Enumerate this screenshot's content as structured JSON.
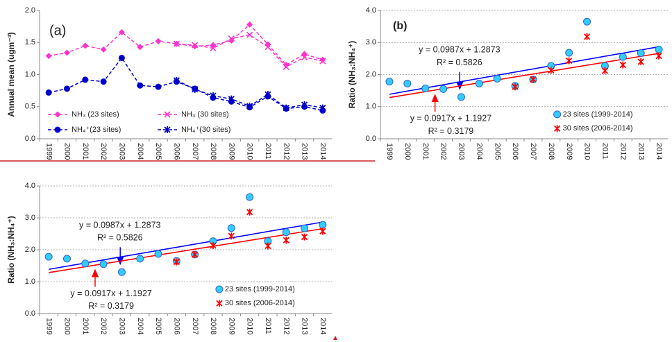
{
  "chart_data": [
    {
      "type": "line",
      "title": "(a)",
      "y_label": "Annual mean (ugm⁻³)",
      "categories": [
        "1999",
        "2000",
        "2001",
        "2002",
        "2003",
        "2004",
        "2005",
        "2006",
        "2007",
        "2008",
        "2009",
        "2010",
        "2011",
        "2012",
        "2013",
        "2014"
      ],
      "ylim": [
        0,
        2
      ],
      "yticks": [
        {
          "value": 0,
          "label": "0.0"
        },
        {
          "value": 0.5,
          "label": "0.5"
        },
        {
          "value": 1,
          "label": "1.0"
        },
        {
          "value": 1.5,
          "label": "1.5"
        },
        {
          "value": 2,
          "label": "2.0"
        }
      ],
      "grid": false,
      "series": [
        {
          "name": "NH₃ (23 sites)",
          "color": "#ff33cc",
          "marker": "diamond",
          "values": [
            1.29,
            1.34,
            1.45,
            1.39,
            1.66,
            1.43,
            1.52,
            1.48,
            1.44,
            1.46,
            1.53,
            1.78,
            1.47,
            1.15,
            1.32,
            1.23
          ]
        },
        {
          "name": "NH₃ (30 sites)",
          "color": "#ff33cc",
          "marker": "x",
          "values": [
            null,
            null,
            null,
            null,
            null,
            null,
            null,
            1.48,
            1.46,
            1.41,
            1.56,
            1.62,
            1.43,
            1.12,
            1.27,
            1.21
          ]
        },
        {
          "name": "NH₄⁺(23 sites)",
          "color": "#0000cc",
          "marker": "circle",
          "values": [
            0.72,
            0.78,
            0.92,
            0.89,
            1.26,
            0.83,
            0.81,
            0.89,
            0.78,
            0.64,
            0.58,
            0.49,
            0.66,
            0.47,
            0.5,
            0.44
          ]
        },
        {
          "name": "NH₄⁺(30 sites)",
          "color": "#0000cc",
          "marker": "asterisk",
          "values": [
            null,
            null,
            null,
            null,
            null,
            null,
            null,
            0.91,
            0.77,
            0.67,
            0.62,
            0.51,
            0.69,
            0.48,
            0.53,
            0.48
          ]
        }
      ]
    },
    {
      "type": "scatter",
      "title": "(b)",
      "y_label": "Ratio (NH₃:NH₄⁺)",
      "categories": [
        "1999",
        "2000",
        "2001",
        "2002",
        "2003",
        "2004",
        "2005",
        "2006",
        "2007",
        "2008",
        "2009",
        "2010",
        "2011",
        "2012",
        "2013",
        "2014"
      ],
      "ylim": [
        0,
        4
      ],
      "yticks": [
        {
          "value": 0,
          "label": "0.0"
        },
        {
          "value": 1,
          "label": "1.0"
        },
        {
          "value": 2,
          "label": "2.0"
        },
        {
          "value": 3,
          "label": "3.0"
        },
        {
          "value": 4,
          "label": "4.0"
        }
      ],
      "grid": true,
      "series": [
        {
          "name": "23 sites (1999-2014)",
          "color": "#3366cc",
          "fill": "#33ccff",
          "marker": "circle",
          "values": [
            1.78,
            1.72,
            1.57,
            1.55,
            1.3,
            1.72,
            1.87,
            1.65,
            1.85,
            2.27,
            2.68,
            3.65,
            2.27,
            2.55,
            2.67,
            2.78
          ]
        },
        {
          "name": "30 sites (2006-2014)",
          "color": "#ff0000",
          "marker": "asterisk",
          "values": [
            null,
            null,
            null,
            null,
            null,
            null,
            null,
            1.62,
            1.85,
            2.13,
            2.43,
            3.18,
            2.12,
            2.3,
            2.4,
            2.58
          ]
        }
      ],
      "trendlines": [
        {
          "color": "#0000ff",
          "slope": 0.0987,
          "intercept": 1.2873,
          "equation": "y = 0.0987x + 1.2873",
          "r2": "R² = 0.5826"
        },
        {
          "color": "#ff0000",
          "slope": 0.0917,
          "intercept": 1.1927,
          "equation": "y = 0.0917x + 1.1927",
          "r2": "R² = 0.3179"
        }
      ]
    },
    {
      "type": "scatter",
      "y_label": "Ratio (NH₃:NH₄⁺)",
      "categories": [
        "1999",
        "2000",
        "2001",
        "2002",
        "2003",
        "2004",
        "2005",
        "2006",
        "2007",
        "2008",
        "2009",
        "2010",
        "2011",
        "2012",
        "2013",
        "2014"
      ],
      "ylim": [
        0,
        4
      ],
      "yticks": [
        {
          "value": 0,
          "label": "0.0"
        },
        {
          "value": 1,
          "label": "1.0"
        },
        {
          "value": 2,
          "label": "2.0"
        },
        {
          "value": 3,
          "label": "3.0"
        },
        {
          "value": 4,
          "label": "4.0"
        }
      ],
      "grid": true,
      "series": [
        {
          "name": "23 sites (1999-2014)",
          "color": "#3366cc",
          "fill": "#33ccff",
          "marker": "circle",
          "values": [
            1.78,
            1.72,
            1.57,
            1.55,
            1.3,
            1.72,
            1.87,
            1.65,
            1.85,
            2.27,
            2.68,
            3.65,
            2.27,
            2.55,
            2.67,
            2.78
          ]
        },
        {
          "name": "30 sites (2006-2014)",
          "color": "#ff0000",
          "marker": "asterisk",
          "values": [
            null,
            null,
            null,
            null,
            null,
            null,
            null,
            1.62,
            1.85,
            2.13,
            2.43,
            3.18,
            2.12,
            2.3,
            2.4,
            2.58
          ]
        }
      ],
      "trendlines": [
        {
          "color": "#0000ff",
          "slope": 0.0987,
          "intercept": 1.2873,
          "equation": "y = 0.0987x + 1.2873",
          "r2": "R² = 0.5826"
        },
        {
          "color": "#ff0000",
          "slope": 0.0917,
          "intercept": 1.1927,
          "equation": "y = 0.0917x + 1.1927",
          "r2": "R² = 0.3179"
        }
      ]
    }
  ]
}
